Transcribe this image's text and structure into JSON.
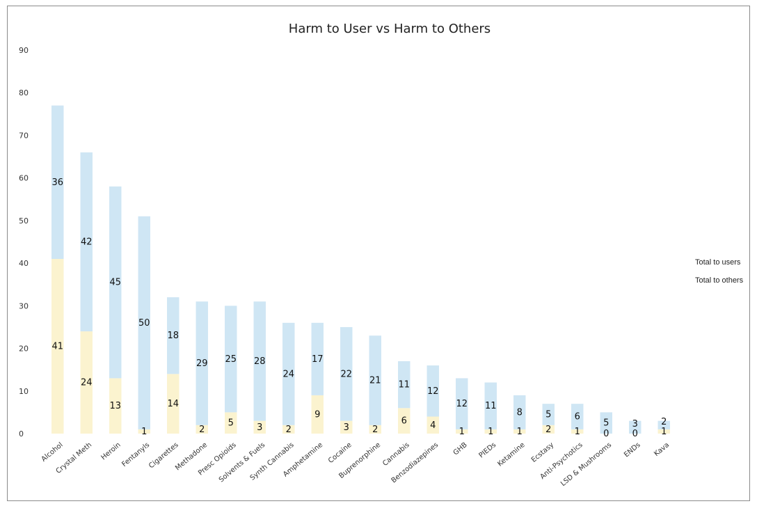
{
  "chart_data": {
    "type": "bar",
    "title": "Harm to User vs Harm to Others",
    "xlabel": "",
    "ylabel": "",
    "ylim": [
      0,
      90
    ],
    "yticks": [
      "0",
      "10",
      "20",
      "30",
      "40",
      "50",
      "60",
      "70",
      "80",
      "90"
    ],
    "stacked": true,
    "legend_position": "right",
    "categories": [
      "Alcohol",
      "Crystal Meth",
      "Heroin",
      "Fentanyls",
      "Cigarettes",
      "Methadone",
      "Presc Opioids",
      "Solvents & Fuels",
      "Synth Cannabis",
      "Amphetamine",
      "Cocaine",
      "Buprenorphine",
      "Cannabis",
      "Benzodiazepines",
      "GHB",
      "PIEDs",
      "Ketamine",
      "Ecstasy",
      "Anti-Psychotics",
      "LSD & Mushrooms",
      "ENDs",
      "Kava"
    ],
    "series": [
      {
        "name": "Total to users",
        "color": "#cfe6f4",
        "values": [
          36,
          42,
          45,
          50,
          18,
          29,
          25,
          28,
          24,
          17,
          22,
          21,
          11,
          12,
          12,
          11,
          8,
          5,
          6,
          5,
          3,
          2
        ]
      },
      {
        "name": "Total to others",
        "color": "#fbf3cf",
        "values": [
          41,
          24,
          13,
          1,
          14,
          2,
          5,
          3,
          2,
          9,
          3,
          2,
          6,
          4,
          1,
          1,
          1,
          2,
          1,
          0,
          0,
          1
        ]
      }
    ]
  }
}
